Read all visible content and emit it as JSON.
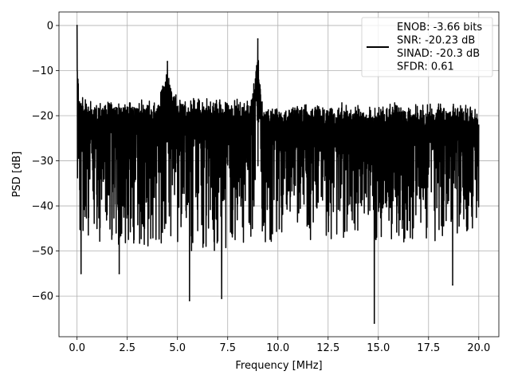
{
  "chart_data": {
    "type": "line",
    "title": "",
    "xlabel": "Frequency [MHz]",
    "ylabel": "PSD [dB]",
    "xlim": [
      -0.9,
      21.0
    ],
    "ylim": [
      -69,
      3
    ],
    "xticks": [
      0.0,
      2.5,
      5.0,
      7.5,
      10.0,
      12.5,
      15.0,
      17.5,
      20.0
    ],
    "xtick_labels": [
      "0.0",
      "2.5",
      "5.0",
      "7.5",
      "10.0",
      "12.5",
      "15.0",
      "17.5",
      "20.0"
    ],
    "yticks": [
      0,
      -10,
      -20,
      -30,
      -40,
      -50,
      -60
    ],
    "ytick_labels": [
      "0",
      "−10",
      "−20",
      "−30",
      "−40",
      "−50",
      "−60"
    ],
    "grid": true,
    "legend_position": "top-right",
    "series": [
      {
        "legend_lines": [
          "ENOB: -3.66 bits",
          "SNR: -20.23 dB",
          "SINAD: -20.3 dB",
          "SFDR: 0.61"
        ],
        "color": "#000000",
        "envelope": {
          "x": [
            0.0,
            0.02,
            0.05,
            0.1,
            0.2,
            0.4,
            0.6,
            1.0,
            2.0,
            3.0,
            4.0,
            4.5,
            5.0,
            6.0,
            7.0,
            8.0,
            8.7,
            9.0,
            9.2,
            9.5,
            10.0,
            11.0,
            12.0,
            13.0,
            14.0,
            15.0,
            16.0,
            17.0,
            18.0,
            19.0,
            20.0
          ],
          "max": [
            0,
            -5,
            -11,
            -13,
            -14,
            -15,
            -15,
            -15,
            -15,
            -15,
            -15,
            -8,
            -15,
            -15,
            -15,
            -15,
            -15,
            -3,
            -15,
            -16,
            -16,
            -16,
            -16,
            -16,
            -16,
            -16,
            -16,
            -16,
            -16,
            -16,
            -17
          ],
          "min": [
            -28,
            -36,
            -44,
            -50,
            -48,
            -50,
            -49,
            -48,
            -49,
            -49,
            -49,
            -48,
            -50,
            -50,
            -50,
            -49,
            -48,
            -44,
            -47,
            -49,
            -48,
            -48,
            -48,
            -48,
            -48,
            -49,
            -48,
            -48,
            -48,
            -47,
            -44
          ]
        },
        "peaks": [
          {
            "x": 0.0,
            "y": 0
          },
          {
            "x": 4.5,
            "y": -8
          },
          {
            "x": 9.0,
            "y": -3
          }
        ],
        "dips": [
          {
            "x": 0.2,
            "y": -55
          },
          {
            "x": 2.1,
            "y": -55
          },
          {
            "x": 5.6,
            "y": -61
          },
          {
            "x": 7.2,
            "y": -60.5
          },
          {
            "x": 14.8,
            "y": -66
          },
          {
            "x": 18.7,
            "y": -57.5
          }
        ]
      }
    ]
  }
}
